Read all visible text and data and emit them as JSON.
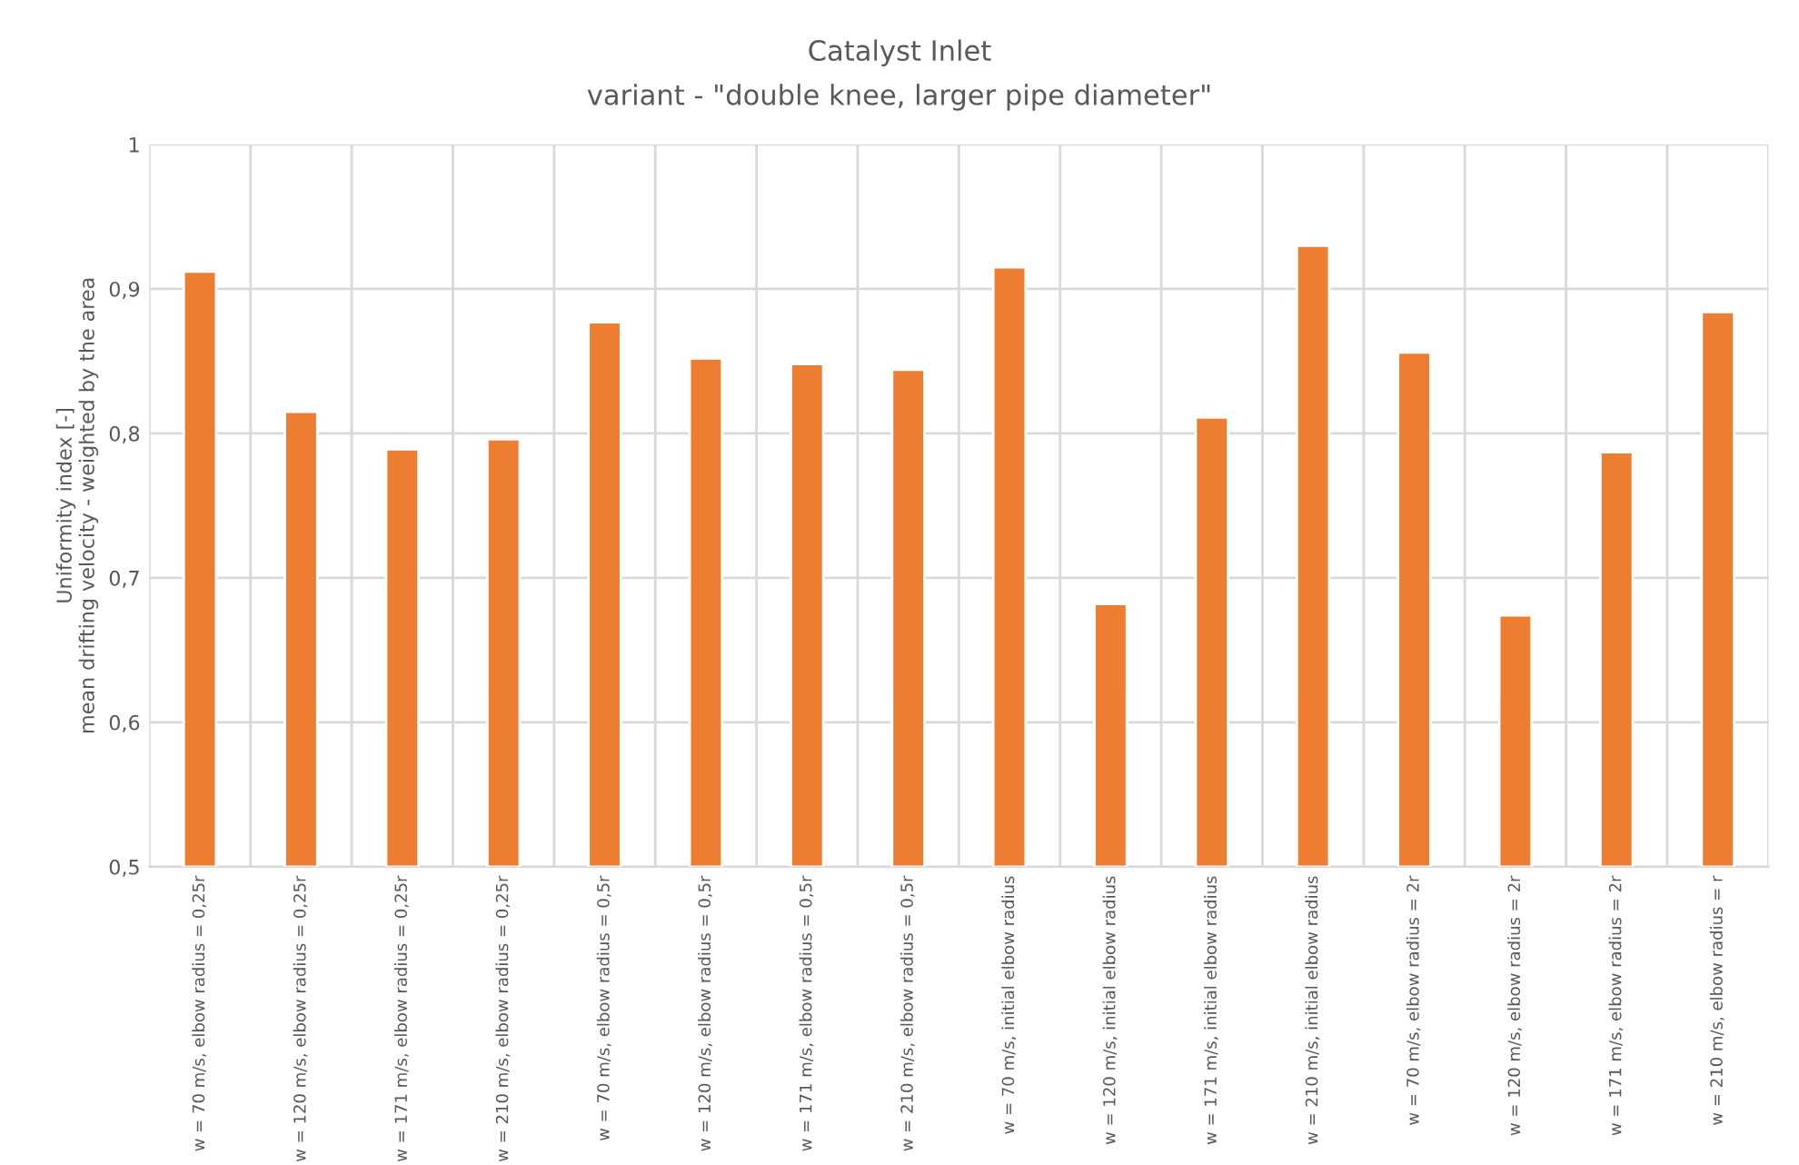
{
  "chart_data": {
    "type": "bar",
    "title": "Catalyst Inlet",
    "subtitle": "variant - \"double knee, larger pipe diameter\"",
    "ylabel": "Uniformity index [-]\nmean drifting velocity - weighted by the area",
    "categories": [
      "w = 70 m/s, elbow radius = 0,25r",
      "w = 120 m/s, elbow radius = 0,25r",
      "w = 171 m/s, elbow radius = 0,25r",
      "w = 210 m/s, elbow radius = 0,25r",
      "w = 70 m/s, elbow radius = 0,5r",
      "w = 120 m/s, elbow radius = 0,5r",
      "w = 171 m/s, elbow radius = 0,5r",
      "w = 210 m/s, elbow radius = 0,5r",
      "w = 70 m/s, initial elbow radius",
      "w = 120 m/s, initial elbow radius",
      "w = 171 m/s, initial elbow radius",
      "w = 210 m/s, initial elbow radius",
      "w = 70 m/s, elbow radius = 2r",
      "w = 120 m/s, elbow radius = 2r",
      "w = 171 m/s, elbow radius = 2r",
      "w = 210 m/s, elbow radius = r"
    ],
    "values": [
      0.912,
      0.815,
      0.789,
      0.796,
      0.877,
      0.852,
      0.848,
      0.844,
      0.915,
      0.682,
      0.811,
      0.93,
      0.856,
      0.674,
      0.787,
      0.884
    ],
    "color": "#ed7d31",
    "ylim": [
      0.5,
      1
    ],
    "yticks": [
      {
        "value": 0.5,
        "label": "0,5"
      },
      {
        "value": 0.6,
        "label": "0,6"
      },
      {
        "value": 0.7,
        "label": "0,7"
      },
      {
        "value": 0.8,
        "label": "0,8"
      },
      {
        "value": 0.9,
        "label": "0,9"
      },
      1
    ],
    "grid": true
  }
}
